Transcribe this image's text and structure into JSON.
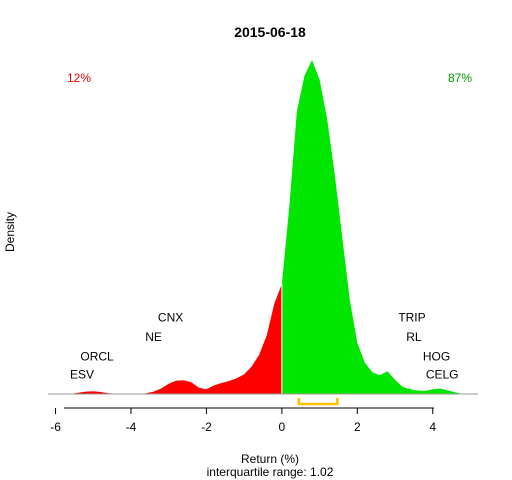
{
  "chart_data": {
    "type": "area",
    "title": "2015-06-18",
    "xlabel": "Return (%)",
    "ylabel": "Density",
    "subtitle": "interquartile range: 1.02",
    "xlim": [
      -6.2,
      5.2
    ],
    "ylim": [
      0,
      0.85
    ],
    "x_ticks": [
      -6,
      -4,
      -2,
      0,
      2,
      4
    ],
    "negative_pct": "12%",
    "positive_pct": "87%",
    "colors": {
      "negative": "#ff0000",
      "positive": "#00e600",
      "iqr": "#ffc000",
      "neg_text": "#e00000",
      "pos_text": "#009900"
    },
    "iqr": [
      0.45,
      1.47
    ],
    "density": {
      "x": [
        -5.6,
        -5.4,
        -5.2,
        -5.0,
        -4.8,
        -4.6,
        -4.4,
        -4.2,
        -4.0,
        -3.8,
        -3.6,
        -3.4,
        -3.2,
        -3.0,
        -2.8,
        -2.6,
        -2.4,
        -2.2,
        -2.0,
        -1.8,
        -1.6,
        -1.4,
        -1.2,
        -1.0,
        -0.8,
        -0.6,
        -0.4,
        -0.2,
        0.0,
        0.2,
        0.4,
        0.6,
        0.8,
        1.0,
        1.2,
        1.4,
        1.6,
        1.8,
        2.0,
        2.2,
        2.4,
        2.6,
        2.8,
        3.0,
        3.2,
        3.4,
        3.6,
        3.8,
        4.0,
        4.2,
        4.4,
        4.6,
        4.8
      ],
      "y": [
        0.0,
        0.003,
        0.006,
        0.007,
        0.005,
        0.002,
        0.001,
        0.0,
        0.0,
        0.0,
        0.002,
        0.006,
        0.014,
        0.026,
        0.034,
        0.035,
        0.03,
        0.016,
        0.012,
        0.022,
        0.028,
        0.033,
        0.04,
        0.05,
        0.07,
        0.1,
        0.15,
        0.23,
        0.28,
        0.48,
        0.72,
        0.81,
        0.85,
        0.8,
        0.7,
        0.56,
        0.4,
        0.24,
        0.13,
        0.08,
        0.055,
        0.048,
        0.058,
        0.036,
        0.018,
        0.012,
        0.009,
        0.008,
        0.012,
        0.014,
        0.009,
        0.004,
        0.0
      ]
    },
    "annotations": [
      {
        "text": "CNX",
        "x": -2.95,
        "y": 0.185
      },
      {
        "text": "NE",
        "x": -3.4,
        "y": 0.135
      },
      {
        "text": "ORCL",
        "x": -4.9,
        "y": 0.085
      },
      {
        "text": "ESV",
        "x": -5.3,
        "y": 0.04
      },
      {
        "text": "TRIP",
        "x": 3.45,
        "y": 0.185
      },
      {
        "text": "RL",
        "x": 3.5,
        "y": 0.135
      },
      {
        "text": "HOG",
        "x": 4.1,
        "y": 0.085
      },
      {
        "text": "CELG",
        "x": 4.25,
        "y": 0.04
      }
    ]
  }
}
